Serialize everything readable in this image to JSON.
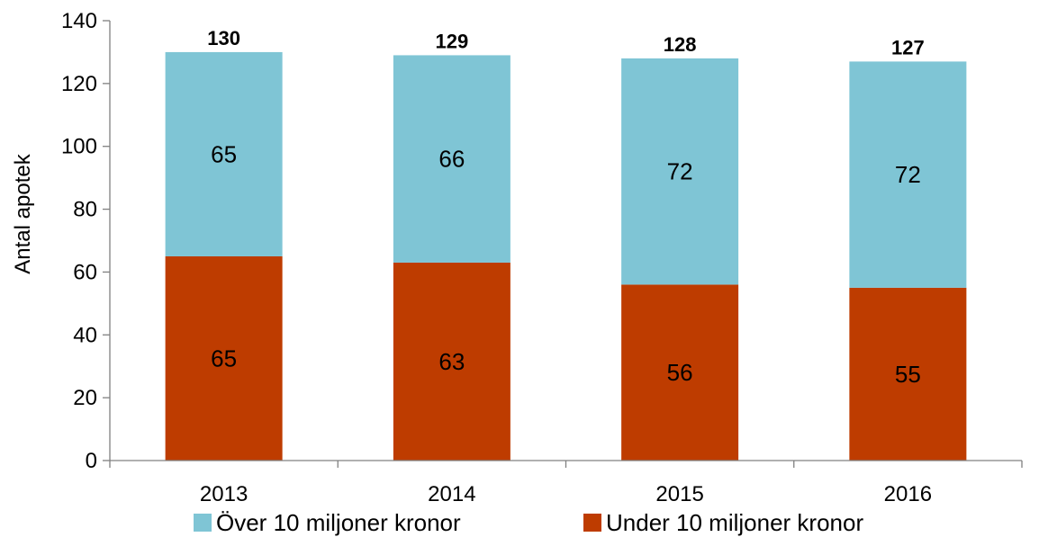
{
  "chart_data": {
    "type": "bar",
    "stacked": true,
    "categories": [
      "2013",
      "2014",
      "2015",
      "2016"
    ],
    "series": [
      {
        "name": "Under 10 miljoner kronor",
        "values": [
          65,
          63,
          56,
          55
        ],
        "color": "#BE3C00"
      },
      {
        "name": "Över 10 miljoner kronor",
        "values": [
          65,
          66,
          72,
          72
        ],
        "color": "#7FC5D5"
      }
    ],
    "totals": [
      130,
      129,
      128,
      127
    ],
    "total_labels": [
      "130",
      "129",
      "128",
      "127"
    ],
    "title": "",
    "xlabel": "",
    "ylabel": "Antal apotek",
    "ylim": [
      0,
      140
    ],
    "yticks": [
      0,
      20,
      40,
      60,
      80,
      100,
      120,
      140
    ],
    "ytick_labels": [
      "0",
      "20",
      "40",
      "60",
      "80",
      "100",
      "120",
      "140"
    ],
    "grid": false,
    "legend_position": "bottom",
    "legend_order": [
      1,
      0
    ]
  }
}
